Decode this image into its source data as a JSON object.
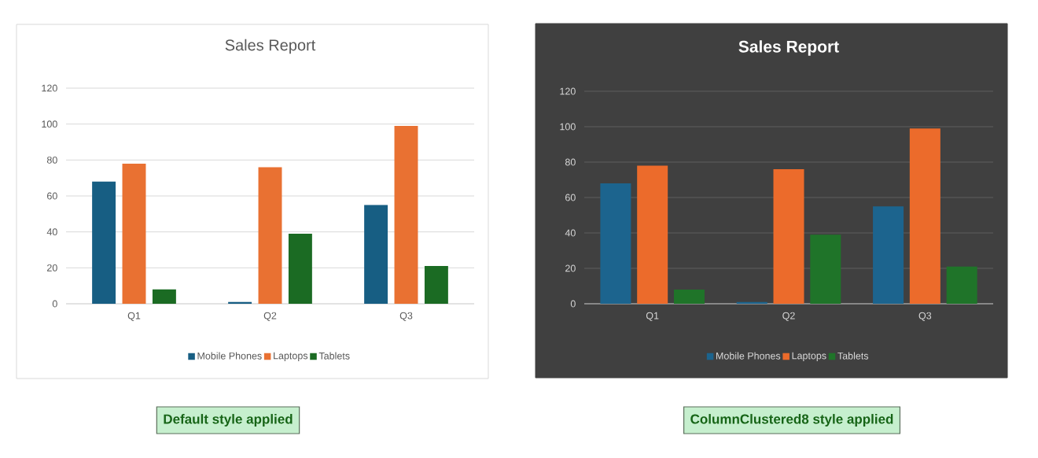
{
  "chart_data": [
    {
      "type": "bar",
      "title": "Sales Report",
      "categories": [
        "Q1",
        "Q2",
        "Q3"
      ],
      "series": [
        {
          "name": "Mobile Phones",
          "color": "#175e83",
          "values": [
            68,
            1,
            55
          ]
        },
        {
          "name": "Laptops",
          "color": "#e97132",
          "values": [
            78,
            76,
            99
          ]
        },
        {
          "name": "Tablets",
          "color": "#1b6b23",
          "values": [
            8,
            39,
            21
          ]
        }
      ],
      "ylim": [
        0,
        120
      ],
      "yticks": [
        0,
        20,
        40,
        60,
        80,
        100,
        120
      ],
      "grid": "y",
      "legend": "bottom",
      "annotations": [
        "Default style applied"
      ]
    },
    {
      "type": "bar",
      "title": "Sales Report",
      "categories": [
        "Q1",
        "Q2",
        "Q3"
      ],
      "series": [
        {
          "name": "Mobile Phones",
          "color": "#1c648e",
          "values": [
            68,
            1,
            55
          ]
        },
        {
          "name": "Laptops",
          "color": "#ec6b2b",
          "values": [
            78,
            76,
            99
          ]
        },
        {
          "name": "Tablets",
          "color": "#1f7429",
          "values": [
            8,
            39,
            21
          ]
        }
      ],
      "ylim": [
        0,
        120
      ],
      "yticks": [
        0,
        20,
        40,
        60,
        80,
        100,
        120
      ],
      "grid": "y",
      "legend": "bottom",
      "annotations": [
        "ColumnClustered8 style applied"
      ]
    }
  ]
}
